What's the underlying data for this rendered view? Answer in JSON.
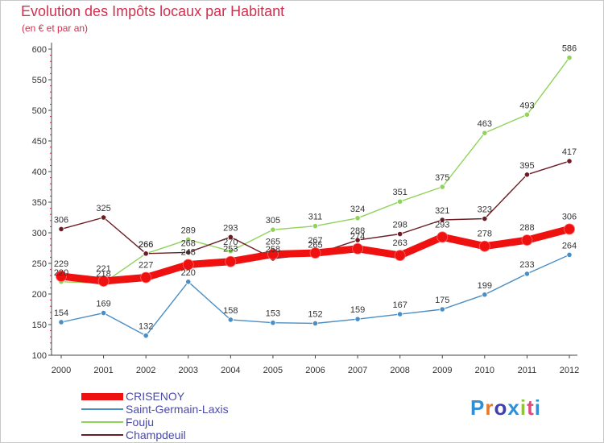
{
  "header": {
    "title": "Evolution des Impôts locaux par Habitant",
    "subtitle": "(en € et par an)"
  },
  "logo": {
    "letters": [
      "P",
      "r",
      "o",
      "x",
      "i",
      "t",
      "i"
    ],
    "colors": [
      "#2f8ed6",
      "#e8792a",
      "#3f3fb0",
      "#2f8ed6",
      "#8fc43a",
      "#e04a7a",
      "#2f8ed6"
    ]
  },
  "chart_data": {
    "type": "line",
    "title": "Evolution des Impôts locaux par Habitant",
    "subtitle": "(en € et par an)",
    "x": [
      "2000",
      "2001",
      "2002",
      "2003",
      "2004",
      "2005",
      "2006",
      "2007",
      "2008",
      "2009",
      "2010",
      "2011",
      "2012"
    ],
    "ylim": [
      100,
      600
    ],
    "yticks": [
      100,
      150,
      200,
      250,
      300,
      350,
      400,
      450,
      500,
      550,
      600
    ],
    "grid": false,
    "legend_position": "bottom-left",
    "series": [
      {
        "name": "Fouju",
        "color": "#8fd35a",
        "width": 1.4,
        "values": [
          220,
          218,
          266,
          289,
          270,
          305,
          311,
          324,
          351,
          375,
          463,
          493,
          586
        ]
      },
      {
        "name": "Champdeuil",
        "color": "#6b1d24",
        "width": 1.4,
        "values": [
          306,
          325,
          266,
          268,
          293,
          258,
          265,
          288,
          298,
          321,
          323,
          395,
          417
        ]
      },
      {
        "name": "Saint-Germain-Laxis",
        "color": "#4a8ec6",
        "width": 1.4,
        "values": [
          154,
          169,
          132,
          220,
          158,
          153,
          152,
          159,
          167,
          175,
          199,
          233,
          264
        ]
      },
      {
        "name": "CRISENOY",
        "color": "#ef1010",
        "width": 9,
        "values": [
          229,
          221,
          227,
          248,
          253,
          265,
          267,
          274,
          263,
          293,
          278,
          288,
          306
        ]
      }
    ],
    "legend_order": [
      "CRISENOY",
      "Saint-Germain-Laxis",
      "Fouju",
      "Champdeuil"
    ]
  }
}
